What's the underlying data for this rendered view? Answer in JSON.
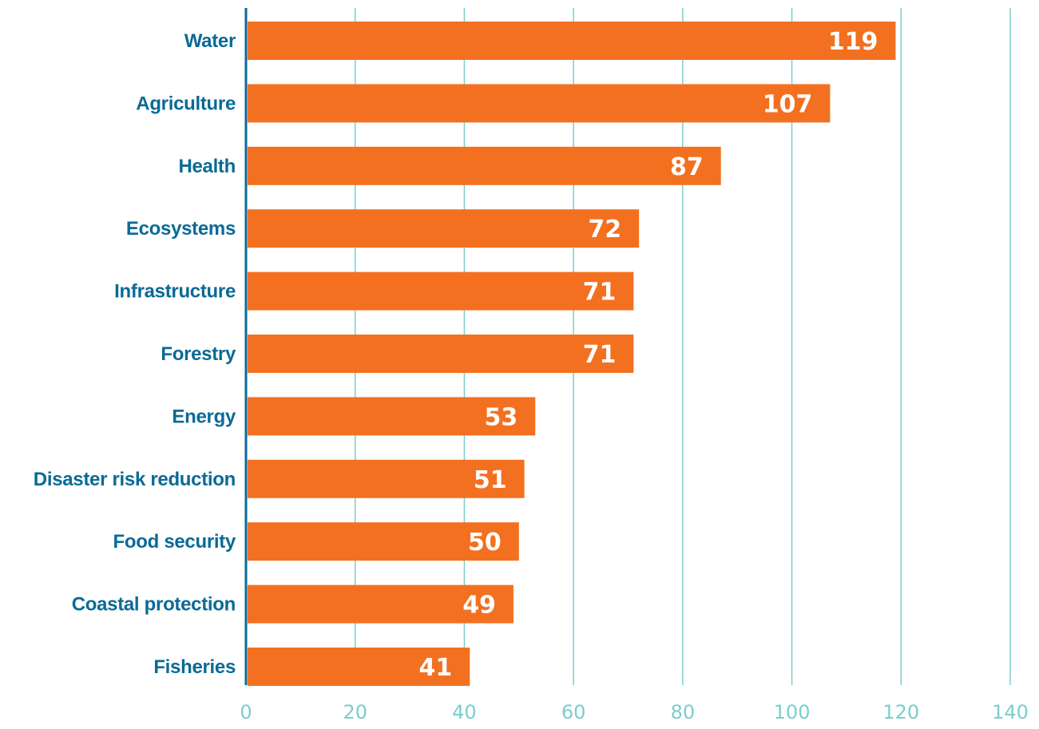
{
  "chart_data": {
    "type": "bar",
    "orientation": "horizontal",
    "categories": [
      "Water",
      "Agriculture",
      "Health",
      "Ecosystems",
      "Infrastructure",
      "Forestry",
      "Energy",
      "Disaster risk reduction",
      "Food security",
      "Coastal protection",
      "Fisheries"
    ],
    "values": [
      119,
      107,
      87,
      72,
      71,
      71,
      53,
      51,
      50,
      49,
      41
    ],
    "data_labels": [
      "119",
      "107",
      "87",
      "72",
      "71",
      "71",
      "53",
      "51",
      "50",
      "49",
      "41"
    ],
    "title": "",
    "xlabel": "",
    "ylabel": "",
    "xlim": [
      0,
      140
    ],
    "x_ticks": [
      0,
      20,
      40,
      60,
      80,
      100,
      120,
      140
    ],
    "x_tick_labels": [
      "0",
      "20",
      "40",
      "60",
      "80",
      "100",
      "120",
      "140"
    ],
    "grid": "vertical",
    "legend": "none"
  },
  "colors": {
    "bar": "#f37021",
    "category_label": "#0a6a96",
    "value_label": "#ffffff",
    "grid": "#7ccdcd",
    "tick_label": "#7ccdcd",
    "axis": "#0a6a96"
  }
}
